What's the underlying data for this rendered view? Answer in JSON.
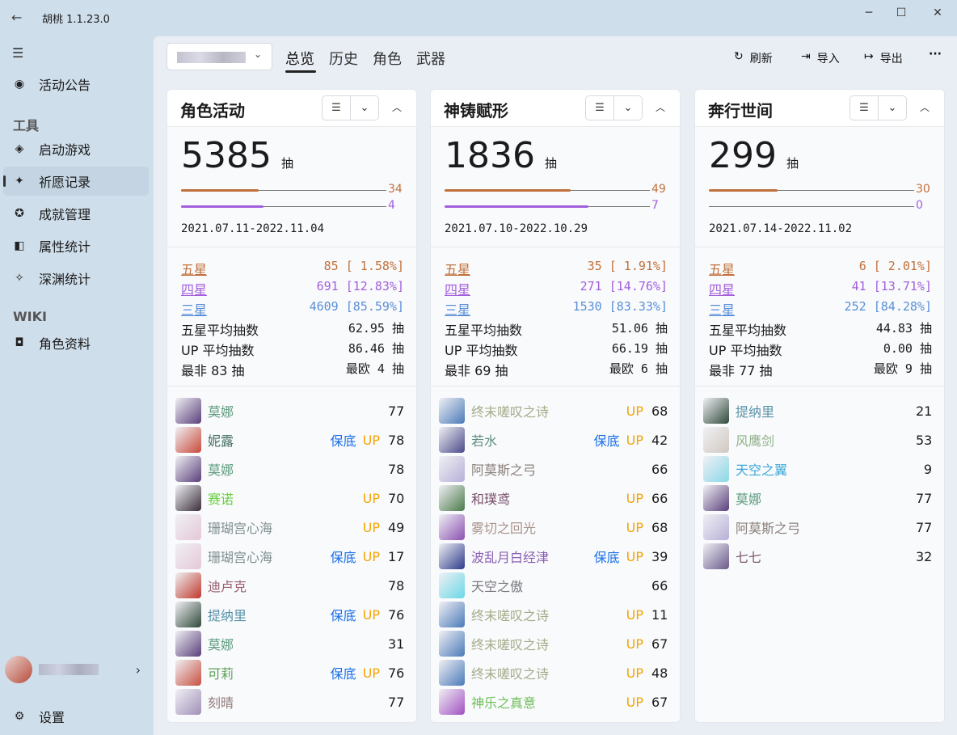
{
  "window": {
    "title": "胡桃 1.1.23.0",
    "minimize": "─",
    "maximize": "☐",
    "close": "✕"
  },
  "sidebar": {
    "items": [
      {
        "label": "活动公告",
        "icon": "announcement-icon",
        "glyph": "◉"
      },
      {
        "section": "工具"
      },
      {
        "label": "启动游戏",
        "icon": "launch-game-icon",
        "glyph": "◈"
      },
      {
        "label": "祈愿记录",
        "icon": "wish-icon",
        "glyph": "✦",
        "active": true
      },
      {
        "label": "成就管理",
        "icon": "achievement-icon",
        "glyph": "✪"
      },
      {
        "label": "属性统计",
        "icon": "stats-icon",
        "glyph": "◧"
      },
      {
        "label": "深渊统计",
        "icon": "abyss-icon",
        "glyph": "✧"
      },
      {
        "section": "WIKI"
      },
      {
        "label": "角色资料",
        "icon": "character-wiki-icon",
        "glyph": "◘"
      }
    ],
    "settings": "设置"
  },
  "toolbar": {
    "tabs": [
      "总览",
      "历史",
      "角色",
      "武器"
    ],
    "active_tab": 0,
    "refresh": "刷新",
    "import": "导入",
    "export": "导出",
    "more": "···"
  },
  "colors": {
    "five": "#c0703a",
    "four": "#a25fdc",
    "three": "#5a8fd6",
    "guarantee": "#1a6fe8",
    "up": "#f5a300"
  },
  "cards": [
    {
      "title": "角色活动",
      "total": "5385",
      "unit": "抽",
      "five_pity": 34,
      "five_max": 90,
      "four_pity": 4,
      "four_max": 10,
      "date": "2021.07.11-2022.11.04",
      "stats": {
        "five_label": "五星",
        "five": "85 [ 1.58%]",
        "four_label": "四星",
        "four": "691 [12.83%]",
        "three_label": "三星",
        "three": "4609 [85.59%]",
        "avg_label": "五星平均抽数",
        "avg": "62.95 抽",
        "up_label": "UP 平均抽数",
        "up": "86.46 抽",
        "worst": "最非 83 抽",
        "best": "最欧 4 抽"
      },
      "items": [
        {
          "name": "莫娜",
          "color": "#5f9d80",
          "count": "77",
          "img": "#5a3f7a"
        },
        {
          "name": "妮露",
          "color": "#3f6e60",
          "guarantee": "保底",
          "up": "UP",
          "count": "78",
          "img": "#c94a3a"
        },
        {
          "name": "莫娜",
          "color": "#5f9d80",
          "count": "78",
          "img": "#5a3f7a"
        },
        {
          "name": "赛诺",
          "color": "#6bcf3f",
          "up": "UP",
          "count": "70",
          "img": "#3a2d3a"
        },
        {
          "name": "珊瑚宫心海",
          "color": "#7f8f8f",
          "up": "UP",
          "count": "49",
          "img": "#e5c8d8"
        },
        {
          "name": "珊瑚宫心海",
          "color": "#7f8f8f",
          "guarantee": "保底",
          "up": "UP",
          "count": "17",
          "img": "#e5c8d8"
        },
        {
          "name": "迪卢克",
          "color": "#9a5f70",
          "count": "78",
          "img": "#c0392b"
        },
        {
          "name": "提纳里",
          "color": "#5a93a8",
          "guarantee": "保底",
          "up": "UP",
          "count": "76",
          "img": "#2f4a3a"
        },
        {
          "name": "莫娜",
          "color": "#5f9d80",
          "count": "31",
          "img": "#5a3f7a"
        },
        {
          "name": "可莉",
          "color": "#5fa05a",
          "guarantee": "保底",
          "up": "UP",
          "count": "76",
          "img": "#c85040"
        },
        {
          "name": "刻晴",
          "color": "#907a7a",
          "count": "77",
          "img": "#a090b8"
        }
      ]
    },
    {
      "title": "神铸赋形",
      "total": "1836",
      "unit": "抽",
      "five_pity": 49,
      "five_max": 80,
      "four_pity": 7,
      "four_max": 10,
      "date": "2021.07.10-2022.10.29",
      "stats": {
        "five_label": "五星",
        "five": "35 [ 1.91%]",
        "four_label": "四星",
        "four": "271 [14.76%]",
        "three_label": "三星",
        "three": "1530 [83.33%]",
        "avg_label": "五星平均抽数",
        "avg": "51.06 抽",
        "up_label": "UP 平均抽数",
        "up": "66.19 抽",
        "worst": "最非 69 抽",
        "best": "最欧 6 抽"
      },
      "items": [
        {
          "name": "终末嗟叹之诗",
          "color": "#a3ab88",
          "up": "UP",
          "count": "68",
          "img": "#4a7ab8"
        },
        {
          "name": "若水",
          "color": "#5f8f80",
          "guarantee": "保底",
          "up": "UP",
          "count": "42",
          "img": "#4a4a8a"
        },
        {
          "name": "阿莫斯之弓",
          "color": "#8a7f7a",
          "count": "66",
          "img": "#b8b0d8"
        },
        {
          "name": "和璞鸢",
          "color": "#7a4f6a",
          "up": "UP",
          "count": "66",
          "img": "#4a7a4a"
        },
        {
          "name": "雾切之回光",
          "color": "#a8928a",
          "up": "UP",
          "count": "68",
          "img": "#8a50b0"
        },
        {
          "name": "波乱月白经津",
          "color": "#8a5fb0",
          "guarantee": "保底",
          "up": "UP",
          "count": "39",
          "img": "#2a3a8a"
        },
        {
          "name": "天空之傲",
          "color": "#7a7a80",
          "count": "66",
          "img": "#6ad8e8"
        },
        {
          "name": "终末嗟叹之诗",
          "color": "#a3ab88",
          "up": "UP",
          "count": "11",
          "img": "#4a7ab8"
        },
        {
          "name": "终末嗟叹之诗",
          "color": "#a3ab88",
          "up": "UP",
          "count": "67",
          "img": "#4a7ab8"
        },
        {
          "name": "终末嗟叹之诗",
          "color": "#a3ab88",
          "up": "UP",
          "count": "48",
          "img": "#4a7ab8"
        },
        {
          "name": "神乐之真意",
          "color": "#6fbf5a",
          "up": "UP",
          "count": "67",
          "img": "#a050c0"
        }
      ]
    },
    {
      "title": "奔行世间",
      "total": "299",
      "unit": "抽",
      "five_pity": 30,
      "five_max": 90,
      "four_pity": 0,
      "four_max": 10,
      "date": "2021.07.14-2022.11.02",
      "stats": {
        "five_label": "五星",
        "five": "6 [ 2.01%]",
        "four_label": "四星",
        "four": "41 [13.71%]",
        "three_label": "三星",
        "three": "252 [84.28%]",
        "avg_label": "五星平均抽数",
        "avg": "44.83 抽",
        "up_label": "UP 平均抽数",
        "up": "0.00 抽",
        "worst": "最非 77 抽",
        "best": "最欧 9 抽"
      },
      "items": [
        {
          "name": "提纳里",
          "color": "#5a93a8",
          "count": "21",
          "img": "#2f4a3a"
        },
        {
          "name": "风鹰剑",
          "color": "#8fb08a",
          "count": "53",
          "img": "#d0c8c0"
        },
        {
          "name": "天空之翼",
          "color": "#3aa8d8",
          "count": "9",
          "img": "#8ad8e8"
        },
        {
          "name": "莫娜",
          "color": "#5f9d80",
          "count": "77",
          "img": "#5a3f7a"
        },
        {
          "name": "阿莫斯之弓",
          "color": "#8a7f7a",
          "count": "77",
          "img": "#b8b0d8"
        },
        {
          "name": "七七",
          "color": "#7a5a70",
          "count": "32",
          "img": "#6a5a8a"
        }
      ]
    }
  ]
}
